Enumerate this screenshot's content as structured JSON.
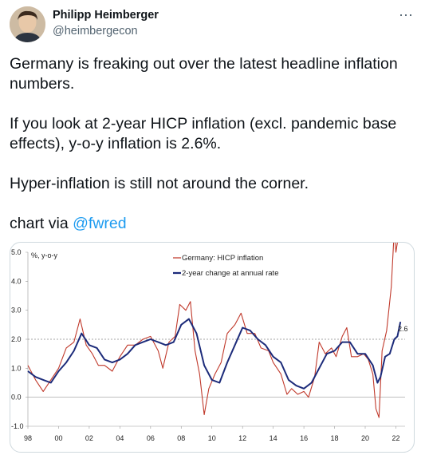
{
  "author": {
    "name": "Philipp Heimberger",
    "handle": "@heimbergecon",
    "avatar_icon": "profile-photo-icon"
  },
  "menu_icon": "more-horizontal-icon",
  "menu_glyph": "⋯",
  "tweet": {
    "p1": "Germany is freaking out over the latest headline inflation numbers.",
    "p2": "If you look at 2-year HICP inflation (excl. pandemic base effects), y-o-y inflation is 2.6%.",
    "p3": "Hyper-inflation is still not around the corner.",
    "p4_prefix": "chart via ",
    "p4_mention": "@fwred"
  },
  "colors": {
    "red": "#c0392b",
    "blue": "#1c2b7a",
    "link": "#1d9bf0"
  },
  "chart_data": {
    "type": "line",
    "ylabel": "%, y-o-y",
    "ylim": [
      -1.0,
      5.0
    ],
    "y_ticks": [
      "5.0",
      "4.0",
      "3.0",
      "2.0",
      "1.0",
      "0.0",
      "-1.0"
    ],
    "y_tick_values": [
      5.0,
      4.0,
      3.0,
      2.0,
      1.0,
      0.0,
      -1.0
    ],
    "xlim": [
      1998,
      2022.6
    ],
    "x_ticks": [
      "98",
      "00",
      "02",
      "04",
      "06",
      "08",
      "10",
      "12",
      "14",
      "16",
      "18",
      "20",
      "22"
    ],
    "x_tick_values": [
      1998,
      2000,
      2002,
      2004,
      2006,
      2008,
      2010,
      2012,
      2014,
      2016,
      2018,
      2020,
      2022
    ],
    "reference_line": 2.0,
    "annotation": "2.6",
    "series": [
      {
        "name": "Germany: HICP inflation",
        "color": "#c0392b",
        "points": [
          [
            1998.0,
            1.1
          ],
          [
            1998.5,
            0.6
          ],
          [
            1999.0,
            0.2
          ],
          [
            1999.5,
            0.6
          ],
          [
            2000.0,
            1.0
          ],
          [
            2000.5,
            1.7
          ],
          [
            2001.0,
            1.9
          ],
          [
            2001.4,
            2.7
          ],
          [
            2001.8,
            1.8
          ],
          [
            2002.2,
            1.5
          ],
          [
            2002.6,
            1.1
          ],
          [
            2003.0,
            1.1
          ],
          [
            2003.5,
            0.9
          ],
          [
            2004.0,
            1.4
          ],
          [
            2004.5,
            1.8
          ],
          [
            2005.0,
            1.8
          ],
          [
            2005.5,
            2.0
          ],
          [
            2006.0,
            2.1
          ],
          [
            2006.5,
            1.6
          ],
          [
            2006.8,
            1.0
          ],
          [
            2007.2,
            1.9
          ],
          [
            2007.6,
            2.1
          ],
          [
            2007.9,
            3.2
          ],
          [
            2008.3,
            3.0
          ],
          [
            2008.6,
            3.3
          ],
          [
            2008.9,
            1.6
          ],
          [
            2009.2,
            0.8
          ],
          [
            2009.5,
            -0.6
          ],
          [
            2009.8,
            0.3
          ],
          [
            2010.2,
            0.8
          ],
          [
            2010.6,
            1.2
          ],
          [
            2011.0,
            2.2
          ],
          [
            2011.5,
            2.5
          ],
          [
            2011.9,
            2.9
          ],
          [
            2012.3,
            2.2
          ],
          [
            2012.8,
            2.2
          ],
          [
            2013.2,
            1.7
          ],
          [
            2013.7,
            1.6
          ],
          [
            2014.0,
            1.2
          ],
          [
            2014.5,
            0.8
          ],
          [
            2014.9,
            0.1
          ],
          [
            2015.2,
            0.3
          ],
          [
            2015.6,
            0.1
          ],
          [
            2016.0,
            0.2
          ],
          [
            2016.3,
            0.0
          ],
          [
            2016.7,
            0.7
          ],
          [
            2017.0,
            1.9
          ],
          [
            2017.4,
            1.5
          ],
          [
            2017.8,
            1.7
          ],
          [
            2018.1,
            1.4
          ],
          [
            2018.5,
            2.1
          ],
          [
            2018.8,
            2.4
          ],
          [
            2019.1,
            1.4
          ],
          [
            2019.5,
            1.4
          ],
          [
            2019.9,
            1.5
          ],
          [
            2020.2,
            1.3
          ],
          [
            2020.5,
            0.8
          ],
          [
            2020.7,
            -0.4
          ],
          [
            2020.9,
            -0.7
          ],
          [
            2021.1,
            1.6
          ],
          [
            2021.4,
            2.3
          ],
          [
            2021.7,
            3.8
          ],
          [
            2021.9,
            5.8
          ],
          [
            2022.0,
            5.0
          ],
          [
            2022.15,
            5.5
          ],
          [
            2022.3,
            6.2
          ]
        ]
      },
      {
        "name": "2-year change at annual rate",
        "color": "#1c2b7a",
        "points": [
          [
            1998.0,
            0.9
          ],
          [
            1998.5,
            0.7
          ],
          [
            1999.0,
            0.6
          ],
          [
            1999.5,
            0.5
          ],
          [
            2000.0,
            0.9
          ],
          [
            2000.5,
            1.2
          ],
          [
            2001.0,
            1.6
          ],
          [
            2001.5,
            2.2
          ],
          [
            2002.0,
            1.8
          ],
          [
            2002.5,
            1.7
          ],
          [
            2003.0,
            1.3
          ],
          [
            2003.5,
            1.2
          ],
          [
            2004.0,
            1.3
          ],
          [
            2004.5,
            1.5
          ],
          [
            2005.0,
            1.8
          ],
          [
            2005.5,
            1.9
          ],
          [
            2006.0,
            2.0
          ],
          [
            2006.5,
            1.9
          ],
          [
            2007.0,
            1.8
          ],
          [
            2007.5,
            1.9
          ],
          [
            2008.0,
            2.5
          ],
          [
            2008.5,
            2.7
          ],
          [
            2009.0,
            2.2
          ],
          [
            2009.5,
            1.1
          ],
          [
            2010.0,
            0.6
          ],
          [
            2010.5,
            0.5
          ],
          [
            2011.0,
            1.2
          ],
          [
            2011.5,
            1.8
          ],
          [
            2012.0,
            2.4
          ],
          [
            2012.5,
            2.3
          ],
          [
            2013.0,
            2.0
          ],
          [
            2013.5,
            1.8
          ],
          [
            2014.0,
            1.4
          ],
          [
            2014.5,
            1.2
          ],
          [
            2015.0,
            0.6
          ],
          [
            2015.5,
            0.4
          ],
          [
            2016.0,
            0.3
          ],
          [
            2016.5,
            0.5
          ],
          [
            2017.0,
            1.0
          ],
          [
            2017.5,
            1.5
          ],
          [
            2018.0,
            1.6
          ],
          [
            2018.5,
            1.9
          ],
          [
            2019.0,
            1.9
          ],
          [
            2019.5,
            1.5
          ],
          [
            2020.0,
            1.5
          ],
          [
            2020.5,
            1.1
          ],
          [
            2020.8,
            0.5
          ],
          [
            2021.0,
            0.7
          ],
          [
            2021.3,
            1.4
          ],
          [
            2021.6,
            1.5
          ],
          [
            2021.9,
            2.0
          ],
          [
            2022.1,
            2.1
          ],
          [
            2022.3,
            2.6
          ]
        ]
      }
    ]
  }
}
